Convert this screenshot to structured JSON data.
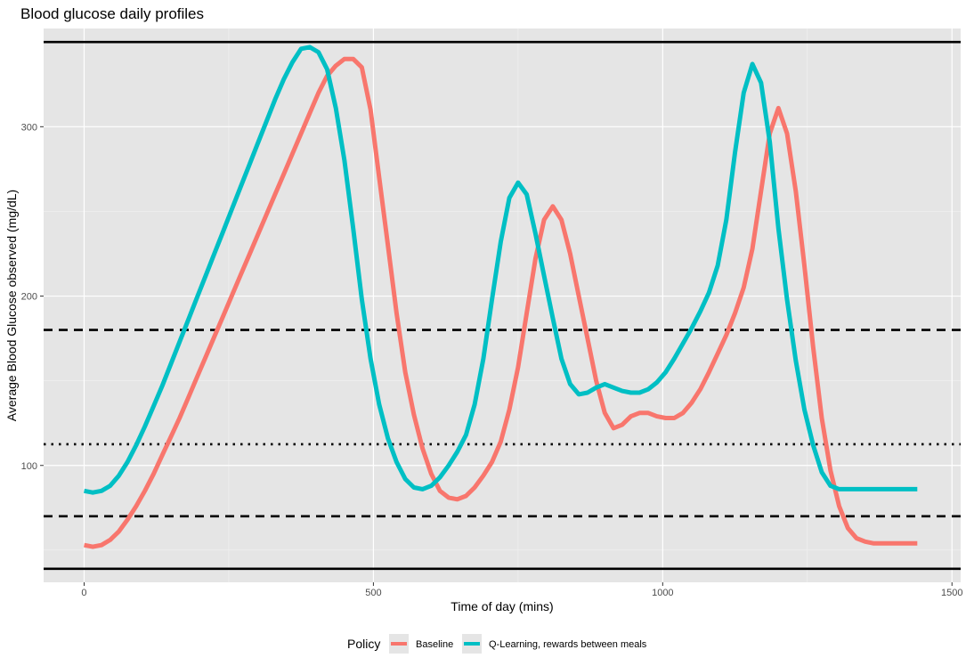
{
  "chart_data": {
    "type": "line",
    "title": "Blood glucose daily profiles",
    "xlabel": "Time of day (mins)",
    "ylabel": "Average Blood Glucose observed (mg/dL)",
    "xlim": [
      -70,
      1515
    ],
    "ylim": [
      31,
      358
    ],
    "x_ticks": [
      0,
      500,
      1000,
      1500
    ],
    "x_tick_labels": [
      "0",
      "500",
      "1000",
      "1500"
    ],
    "y_ticks": [
      100,
      200,
      300
    ],
    "y_tick_labels": [
      "100",
      "200",
      "300"
    ],
    "grid": true,
    "legend": {
      "title": "Policy",
      "position": "bottom"
    },
    "reference_lines": [
      {
        "y": 350,
        "style": "solid"
      },
      {
        "y": 180,
        "style": "dashed"
      },
      {
        "y": 112.5,
        "style": "dotted"
      },
      {
        "y": 70,
        "style": "dashed"
      },
      {
        "y": 39,
        "style": "solid"
      }
    ],
    "x": [
      0,
      15,
      30,
      45,
      60,
      75,
      90,
      105,
      120,
      135,
      150,
      165,
      180,
      195,
      210,
      225,
      240,
      255,
      270,
      285,
      300,
      315,
      330,
      345,
      360,
      375,
      390,
      405,
      420,
      435,
      450,
      465,
      480,
      495,
      510,
      525,
      540,
      555,
      570,
      585,
      600,
      615,
      630,
      645,
      660,
      675,
      690,
      705,
      720,
      735,
      750,
      765,
      780,
      795,
      810,
      825,
      840,
      855,
      870,
      885,
      900,
      915,
      930,
      945,
      960,
      975,
      990,
      1005,
      1020,
      1035,
      1050,
      1065,
      1080,
      1095,
      1110,
      1125,
      1140,
      1155,
      1170,
      1185,
      1200,
      1215,
      1230,
      1245,
      1260,
      1275,
      1290,
      1305,
      1320,
      1335,
      1350,
      1365,
      1380,
      1395,
      1410,
      1425,
      1440
    ],
    "series": [
      {
        "name": "Baseline",
        "color": "#F8766D",
        "values": [
          53,
          52,
          53,
          56,
          61,
          68,
          76,
          85,
          95,
          106,
          117,
          128,
          140,
          152,
          164,
          176,
          188,
          200,
          212,
          224,
          236,
          248,
          260,
          272,
          284,
          296,
          308,
          320,
          330,
          336,
          340,
          340,
          335,
          310,
          270,
          230,
          190,
          155,
          130,
          110,
          95,
          85,
          81,
          80,
          82,
          87,
          94,
          102,
          114,
          133,
          158,
          190,
          222,
          245,
          253,
          245,
          225,
          200,
          175,
          150,
          131,
          122,
          124,
          129,
          131,
          131,
          129,
          128,
          128,
          131,
          137,
          145,
          155,
          166,
          177,
          190,
          205,
          228,
          262,
          296,
          311,
          296,
          262,
          218,
          170,
          128,
          97,
          76,
          63,
          57,
          55,
          54,
          54,
          54,
          54,
          54,
          54
        ]
      },
      {
        "name": "Q-Learning, rewards between meals",
        "color": "#00BFC4",
        "values": [
          85,
          84,
          85,
          88,
          94,
          102,
          112,
          123,
          135,
          147,
          160,
          173,
          186,
          199,
          212,
          225,
          238,
          251,
          264,
          277,
          290,
          303,
          316,
          328,
          338,
          346,
          347,
          344,
          334,
          311,
          280,
          240,
          198,
          163,
          136,
          116,
          102,
          92,
          87,
          86,
          88,
          93,
          100,
          108,
          118,
          136,
          163,
          198,
          232,
          258,
          267,
          260,
          237,
          212,
          187,
          163,
          148,
          142,
          143,
          146,
          148,
          146,
          144,
          143,
          143,
          145,
          149,
          155,
          163,
          172,
          181,
          191,
          202,
          218,
          245,
          285,
          320,
          337,
          326,
          291,
          240,
          198,
          162,
          133,
          112,
          96,
          88,
          86,
          86,
          86,
          86,
          86,
          86,
          86,
          86,
          86,
          86
        ]
      }
    ]
  }
}
